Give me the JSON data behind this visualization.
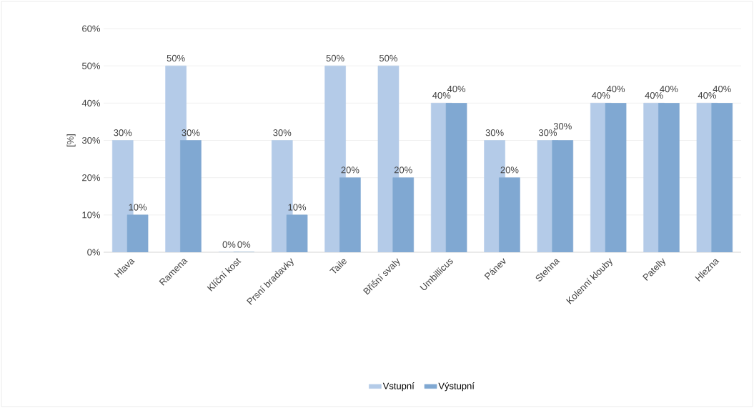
{
  "chart_data": {
    "type": "bar",
    "ylabel": "[%]",
    "categories": [
      "Hlava",
      "Ramena",
      "Klíční kost",
      "Prsní bradavky",
      "Taile",
      "Břišní svaly",
      "Umbillicus",
      "Pánev",
      "Stehna",
      "Kolenní klouby",
      "Patelly",
      "Hlezna"
    ],
    "series": [
      {
        "name": "Vstupní",
        "color": "#b4cbe8",
        "values": [
          30,
          50,
          0,
          30,
          50,
          50,
          40,
          30,
          30,
          40,
          40,
          40
        ],
        "value_labels": [
          "30%",
          "50%",
          "0%",
          "30%",
          "50%",
          "50%",
          "40%",
          "30%",
          "30%",
          "40%",
          "40%",
          "40%"
        ]
      },
      {
        "name": "Výstupní",
        "color": "#80a8d2",
        "values": [
          10,
          30,
          0,
          10,
          20,
          20,
          40,
          20,
          30,
          40,
          40,
          40
        ],
        "value_labels": [
          "10%",
          "30%",
          "0%",
          "10%",
          "20%",
          "20%",
          "40%",
          "20%",
          "30%",
          "40%",
          "40%",
          "40%"
        ]
      }
    ],
    "ylim": [
      0,
      60
    ],
    "yticks": [
      {
        "value": 0,
        "label": "0%"
      },
      {
        "value": 10,
        "label": "10%"
      },
      {
        "value": 20,
        "label": "20%"
      },
      {
        "value": 30,
        "label": "30%"
      },
      {
        "value": 40,
        "label": "40%"
      },
      {
        "value": 50,
        "label": "50%"
      },
      {
        "value": 60,
        "label": "60%"
      }
    ],
    "grid": "y",
    "legend": "bottom"
  }
}
